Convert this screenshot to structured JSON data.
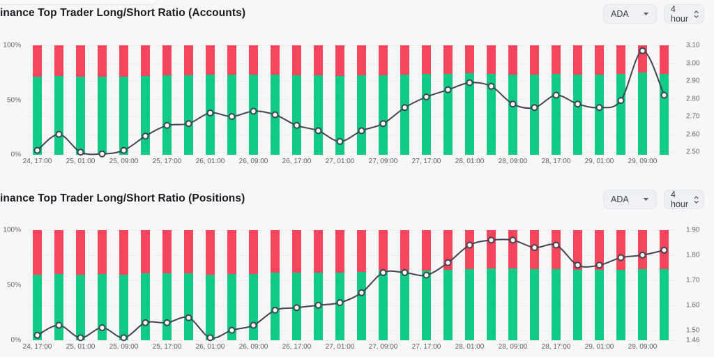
{
  "page": {
    "background": "#f7f7f8"
  },
  "colors": {
    "long_green": "#10ca85",
    "short_red": "#f5465d",
    "ratio_line": "#41434f",
    "marker_fill": "#ffffff",
    "grid": "#e7e8ec"
  },
  "chart_data": [
    {
      "type": "stacked-bar+line",
      "title": "inance Top Trader Long/Short Ratio (Accounts)",
      "symbol_selector": "ADA",
      "interval_selector": "4 hour",
      "x_tick_labels": [
        "24, 17:00",
        "25, 01:00",
        "25, 09:00",
        "25, 17:00",
        "26, 01:00",
        "26, 09:00",
        "26, 17:00",
        "27, 01:00",
        "27, 09:00",
        "27, 17:00",
        "28, 01:00",
        "28, 09:00",
        "28, 17:00",
        "29, 01:00",
        "29, 09:00"
      ],
      "bar_series": [
        {
          "name": "long-account-pct",
          "color": "#10ca85",
          "values": [
            71.5,
            72.2,
            71.4,
            71.3,
            71.5,
            72.1,
            72.6,
            72.7,
            73.1,
            73.0,
            73.2,
            73.0,
            72.6,
            72.4,
            71.9,
            72.4,
            72.7,
            73.3,
            73.8,
            74.0,
            74.3,
            74.2,
            73.5,
            73.3,
            73.8,
            73.5,
            73.3,
            73.6,
            75.4,
            73.8
          ]
        },
        {
          "name": "short-account-pct",
          "color": "#f5465d",
          "values": [
            28.5,
            27.8,
            28.6,
            28.7,
            28.5,
            27.9,
            27.4,
            27.3,
            26.9,
            27.0,
            26.8,
            27.0,
            27.4,
            27.6,
            28.1,
            27.6,
            27.3,
            26.7,
            26.2,
            26.0,
            25.7,
            25.8,
            26.5,
            26.7,
            26.2,
            26.5,
            26.7,
            26.4,
            24.6,
            26.2
          ]
        }
      ],
      "line_series": {
        "name": "long-short-ratio-accounts",
        "values": [
          2.51,
          2.6,
          2.5,
          2.49,
          2.51,
          2.59,
          2.65,
          2.66,
          2.72,
          2.7,
          2.73,
          2.71,
          2.65,
          2.62,
          2.56,
          2.62,
          2.66,
          2.75,
          2.81,
          2.85,
          2.89,
          2.87,
          2.77,
          2.75,
          2.82,
          2.77,
          2.75,
          2.79,
          3.07,
          2.82
        ]
      },
      "left_axis": {
        "ticks": [
          "100%",
          "50%",
          "0%"
        ],
        "range": [
          0,
          100
        ]
      },
      "right_axis": {
        "ticks": [
          "3.10",
          "3.00",
          "2.90",
          "2.80",
          "2.70",
          "2.60",
          "2.50"
        ],
        "range": [
          2.485,
          3.1
        ]
      },
      "grid": "dashed-horizontal",
      "bars_count": 30
    },
    {
      "type": "stacked-bar+line",
      "title": "inance Top Trader Long/Short Ratio (Positions)",
      "symbol_selector": "ADA",
      "interval_selector": "4 hour",
      "x_tick_labels": [
        "24, 17:00",
        "25, 01:00",
        "25, 09:00",
        "25, 17:00",
        "26, 01:00",
        "26, 09:00",
        "26, 17:00",
        "27, 01:00",
        "27, 09:00",
        "27, 17:00",
        "28, 01:00",
        "28, 09:00",
        "28, 17:00",
        "29, 01:00",
        "29, 09:00"
      ],
      "bar_series": [
        {
          "name": "long-position-pct",
          "color": "#10ca85",
          "values": [
            59.7,
            60.3,
            59.5,
            60.2,
            59.5,
            60.5,
            60.5,
            60.8,
            59.5,
            60.0,
            60.3,
            61.2,
            61.4,
            61.5,
            61.7,
            62.3,
            63.4,
            63.4,
            63.2,
            63.9,
            64.8,
            65.0,
            65.0,
            64.7,
            64.8,
            63.8,
            63.8,
            64.2,
            64.3,
            64.5
          ]
        },
        {
          "name": "short-position-pct",
          "color": "#f5465d",
          "values": [
            40.3,
            39.7,
            40.5,
            39.8,
            40.5,
            39.5,
            39.5,
            39.2,
            40.5,
            40.0,
            39.7,
            38.8,
            38.6,
            38.5,
            38.3,
            37.7,
            36.6,
            36.6,
            36.8,
            36.1,
            35.2,
            35.0,
            35.0,
            35.3,
            35.2,
            36.2,
            36.2,
            35.8,
            35.7,
            35.5
          ]
        }
      ],
      "line_series": {
        "name": "long-short-ratio-positions",
        "values": [
          1.48,
          1.52,
          1.47,
          1.51,
          1.47,
          1.53,
          1.53,
          1.55,
          1.47,
          1.5,
          1.52,
          1.58,
          1.59,
          1.6,
          1.61,
          1.65,
          1.73,
          1.73,
          1.72,
          1.77,
          1.84,
          1.86,
          1.86,
          1.83,
          1.84,
          1.76,
          1.76,
          1.79,
          1.8,
          1.82
        ]
      },
      "left_axis": {
        "ticks": [
          "100%",
          "50%",
          "0%"
        ],
        "range": [
          0,
          100
        ]
      },
      "right_axis": {
        "ticks": [
          "1.90",
          "1.80",
          "1.70",
          "1.60",
          "1.50",
          "1.46"
        ],
        "range": [
          1.46,
          1.9
        ]
      },
      "grid": "dashed-horizontal",
      "bars_count": 30
    }
  ]
}
